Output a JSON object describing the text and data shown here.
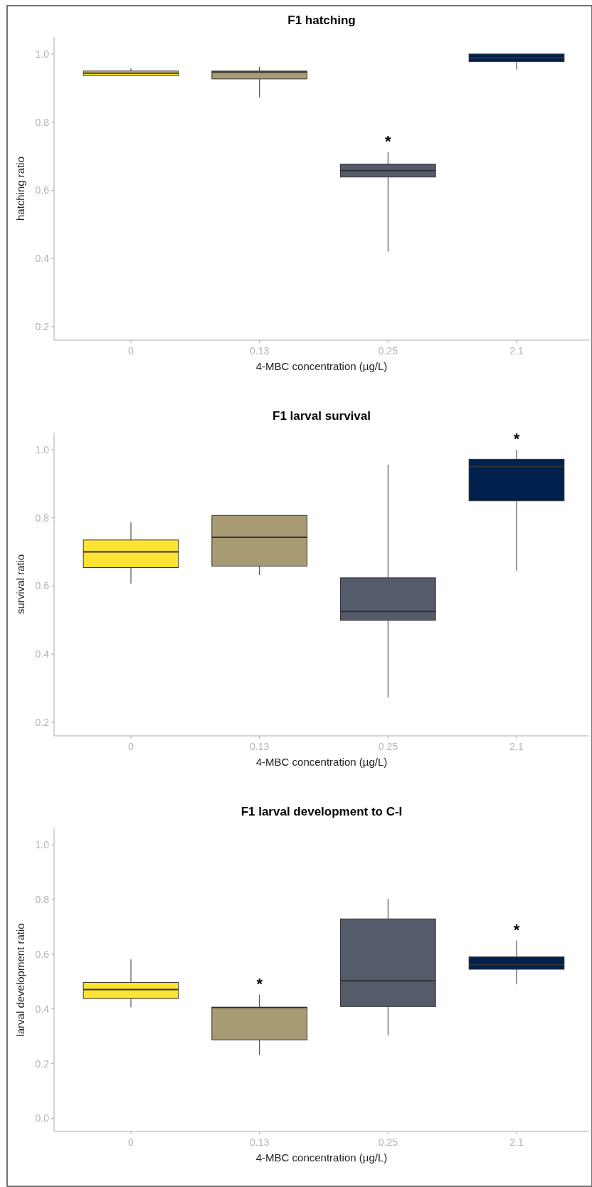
{
  "chart_data": [
    {
      "type": "box",
      "title": "F1 hatching",
      "xlabel": "4-MBC concentration (µg/L)",
      "ylabel": "hatching ratio",
      "categories": [
        "0",
        "0.13",
        "0.25",
        "2.1"
      ],
      "colors": [
        "#fde333",
        "#a89a72",
        "#545b6b",
        "#00204d"
      ],
      "boxes": [
        {
          "low": 0.937,
          "q1": 0.937,
          "median": 0.944,
          "q3": 0.95,
          "high": 0.958
        },
        {
          "low": 0.873,
          "q1": 0.927,
          "median": 0.947,
          "q3": 0.95,
          "high": 0.963
        },
        {
          "low": 0.42,
          "q1": 0.639,
          "median": 0.658,
          "q3": 0.677,
          "high": 0.712
        },
        {
          "low": 0.955,
          "q1": 0.978,
          "median": 0.989,
          "q3": 1.0,
          "high": 1.0
        }
      ],
      "ylim": [
        0.16,
        1.05
      ],
      "yticks": [
        {
          "value": 0.2,
          "label": "0.2"
        },
        {
          "value": 0.4,
          "label": "0.4"
        },
        {
          "value": 0.6,
          "label": "0.6"
        },
        {
          "value": 0.8,
          "label": "0.8"
        },
        {
          "value": 1.0,
          "label": "1.0"
        }
      ],
      "grid": false,
      "annotations": [
        "*"
      ]
    },
    {
      "type": "box",
      "title": "F1 larval survival",
      "xlabel": "4-MBC concentration (µg/L)",
      "ylabel": "survival ratio",
      "categories": [
        "0",
        "0.13",
        "0.25",
        "2.1"
      ],
      "colors": [
        "#fde333",
        "#a89a72",
        "#545b6b",
        "#00204d"
      ],
      "boxes": [
        {
          "low": 0.607,
          "q1": 0.654,
          "median": 0.7,
          "q3": 0.735,
          "high": 0.787
        },
        {
          "low": 0.632,
          "q1": 0.658,
          "median": 0.743,
          "q3": 0.807,
          "high": 0.807
        },
        {
          "low": 0.273,
          "q1": 0.499,
          "median": 0.525,
          "q3": 0.624,
          "high": 0.956
        },
        {
          "low": 0.645,
          "q1": 0.85,
          "median": 0.95,
          "q3": 0.972,
          "high": 1.0
        }
      ],
      "ylim": [
        0.16,
        1.05
      ],
      "yticks": [
        {
          "value": 0.2,
          "label": "0.2"
        },
        {
          "value": 0.4,
          "label": "0.4"
        },
        {
          "value": 0.6,
          "label": "0.6"
        },
        {
          "value": 0.8,
          "label": "0.8"
        },
        {
          "value": 1.0,
          "label": "1.0"
        }
      ],
      "grid": false,
      "annotations": [
        "*"
      ]
    },
    {
      "type": "box",
      "title": "F1 larval development to C-I",
      "xlabel": "4-MBC concentration (µg/L)",
      "ylabel": "larval development ratio",
      "categories": [
        "0",
        "0.13",
        "0.25",
        "2.1"
      ],
      "colors": [
        "#fde333",
        "#a89a72",
        "#545b6b",
        "#00204d"
      ],
      "boxes": [
        {
          "low": 0.406,
          "q1": 0.438,
          "median": 0.471,
          "q3": 0.497,
          "high": 0.581
        },
        {
          "low": 0.231,
          "q1": 0.287,
          "median": 0.405,
          "q3": 0.406,
          "high": 0.452
        },
        {
          "low": 0.304,
          "q1": 0.409,
          "median": 0.503,
          "q3": 0.729,
          "high": 0.802
        },
        {
          "low": 0.49,
          "q1": 0.545,
          "median": 0.562,
          "q3": 0.59,
          "high": 0.65
        }
      ],
      "ylim": [
        -0.048,
        1.06
      ],
      "yticks": [
        {
          "value": 0.0,
          "label": "0.0"
        },
        {
          "value": 0.2,
          "label": "0.2"
        },
        {
          "value": 0.4,
          "label": "0.4"
        },
        {
          "value": 0.6,
          "label": "0.6"
        },
        {
          "value": 0.8,
          "label": "0.8"
        },
        {
          "value": 1.0,
          "label": "1.0"
        }
      ],
      "grid": false,
      "annotations": [
        "*",
        "*"
      ]
    }
  ]
}
